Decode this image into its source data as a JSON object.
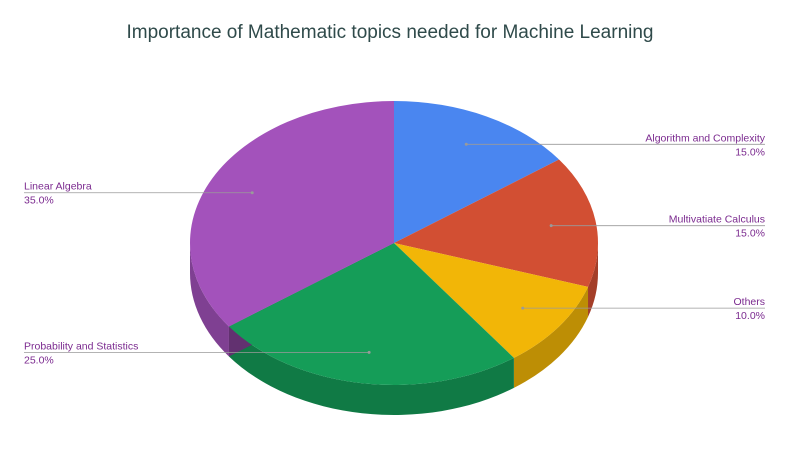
{
  "chart_data": {
    "type": "pie",
    "title": "Importance of Mathematic topics needed for Machine Learning",
    "slices": [
      {
        "label": "Algorithm and Complexity",
        "value": 15.0,
        "value_label": "15.0%",
        "color": "#4a86f0"
      },
      {
        "label": "Multivatiate Calculus",
        "value": 15.0,
        "value_label": "15.0%",
        "color": "#d24f33"
      },
      {
        "label": "Others",
        "value": 10.0,
        "value_label": "10.0%",
        "color": "#f2b607"
      },
      {
        "label": "Probability and Statistics",
        "value": 25.0,
        "value_label": "25.0%",
        "color": "#159d58"
      },
      {
        "label": "Linear Algebra",
        "value": 35.0,
        "value_label": "35.0%",
        "color": "#a352bb"
      }
    ],
    "style": "3d",
    "start": "12 o'clock",
    "direction": "clockwise",
    "legend": "none",
    "label_color": "#7b2a8f",
    "title_color": "#2f4a4a"
  }
}
